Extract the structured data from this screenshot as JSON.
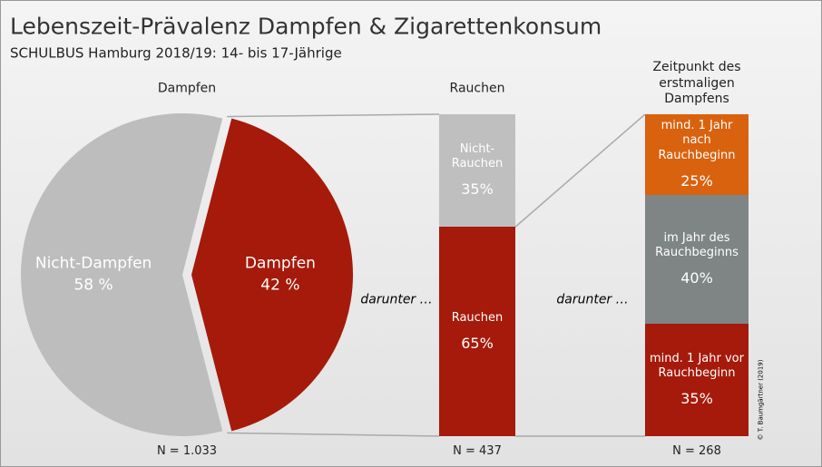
{
  "title": "Lebenszeit-Prävalenz Dampfen & Zigarettenkonsum",
  "subtitle": "SCHULBUS Hamburg 2018/19: 14- bis 17-Jährige",
  "credit": "© T. Baumgärtner (2019)",
  "annotations": [
    "darunter …",
    "darunter …"
  ],
  "chart_data": [
    {
      "type": "pie",
      "title": "Dampfen",
      "categories": [
        "Nicht-Dampfen",
        "Dampfen"
      ],
      "values": [
        58,
        42
      ],
      "value_labels": [
        "58 %",
        "42 %"
      ],
      "colors": [
        "#bdbdbd",
        "#a51a0a"
      ],
      "note": "N = 1.033"
    },
    {
      "type": "stacked-bar",
      "title": "Rauchen",
      "categories": [
        "Rauchen",
        "Nicht-\nRauchen"
      ],
      "values": [
        65,
        35
      ],
      "value_labels": [
        "65%",
        "35%"
      ],
      "colors": [
        "#a51a0a",
        "#bfbfbf"
      ],
      "note": "N = 437"
    },
    {
      "type": "stacked-bar",
      "title": "Zeitpunkt des\nerstmaligen Dampfens",
      "categories": [
        "mind. 1 Jahr vor\nRauchbeginn",
        "im Jahr des\nRauchbeginns",
        "mind. 1 Jahr nach\nRauchbeginn"
      ],
      "values": [
        35,
        40,
        25
      ],
      "value_labels": [
        "35%",
        "40%",
        "25%"
      ],
      "colors": [
        "#a51a0a",
        "#7f8584",
        "#d9620f"
      ],
      "note": "N = 268"
    }
  ]
}
